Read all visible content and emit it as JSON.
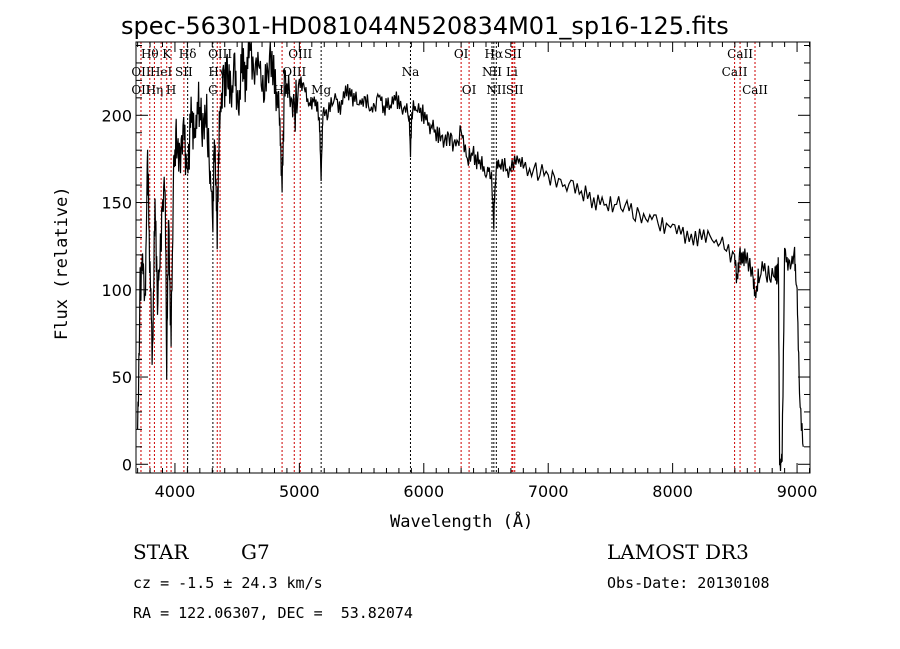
{
  "chart_data": {
    "type": "line",
    "title": "spec-56301-HD081044N520834M01_sp16-125.fits",
    "xlabel": "Wavelength (Å)",
    "ylabel": "Flux (relative)",
    "xlim": [
      3687,
      9104
    ],
    "ylim": [
      -5,
      242
    ],
    "xticks": [
      4000,
      5000,
      6000,
      7000,
      8000,
      9000
    ],
    "yticks": [
      0,
      50,
      100,
      150,
      200
    ],
    "grid": false,
    "series": [
      {
        "name": "spectrum",
        "x": [
          3700,
          3720,
          3740,
          3760,
          3780,
          3800,
          3820,
          3840,
          3860,
          3880,
          3900,
          3920,
          3934,
          3950,
          3969,
          3990,
          4010,
          4040,
          4070,
          4100,
          4130,
          4160,
          4190,
          4220,
          4250,
          4280,
          4305,
          4320,
          4340,
          4360,
          4390,
          4420,
          4450,
          4480,
          4510,
          4540,
          4570,
          4600,
          4640,
          4680,
          4720,
          4760,
          4800,
          4840,
          4861,
          4880,
          4920,
          4960,
          5000,
          5040,
          5080,
          5120,
          5160,
          5175,
          5190,
          5230,
          5280,
          5330,
          5380,
          5430,
          5480,
          5530,
          5580,
          5630,
          5680,
          5730,
          5780,
          5830,
          5880,
          5893,
          5910,
          5950,
          6000,
          6050,
          6100,
          6150,
          6200,
          6250,
          6300,
          6350,
          6400,
          6450,
          6500,
          6540,
          6563,
          6580,
          6620,
          6680,
          6740,
          6800,
          6900,
          7000,
          7100,
          7200,
          7300,
          7400,
          7500,
          7600,
          7700,
          7800,
          7900,
          8000,
          8100,
          8200,
          8300,
          8400,
          8498,
          8520,
          8542,
          8580,
          8640,
          8662,
          8700,
          8760,
          8820,
          8840,
          8850,
          8860,
          8880,
          8900,
          8940,
          8980,
          9000,
          9020,
          9050
        ],
        "y": [
          20,
          100,
          120,
          90,
          175,
          110,
          60,
          150,
          95,
          120,
          150,
          160,
          60,
          140,
          70,
          170,
          185,
          175,
          190,
          165,
          200,
          185,
          210,
          190,
          205,
          170,
          140,
          190,
          135,
          200,
          215,
          225,
          210,
          230,
          200,
          235,
          215,
          240,
          225,
          230,
          215,
          235,
          220,
          205,
          160,
          215,
          210,
          200,
          220,
          215,
          205,
          210,
          200,
          165,
          205,
          200,
          212,
          205,
          215,
          210,
          205,
          210,
          200,
          212,
          205,
          205,
          210,
          205,
          200,
          180,
          205,
          205,
          200,
          195,
          190,
          185,
          188,
          182,
          190,
          175,
          178,
          172,
          170,
          168,
          140,
          170,
          172,
          168,
          175,
          170,
          168,
          165,
          160,
          158,
          155,
          150,
          148,
          150,
          145,
          142,
          138,
          138,
          132,
          130,
          128,
          125,
          118,
          105,
          120,
          118,
          112,
          95,
          112,
          110,
          110,
          108,
          115,
          0,
          5,
          118,
          115,
          120,
          95,
          40,
          10
        ]
      }
    ],
    "line_markers": [
      {
        "label": "OII",
        "wave": 3727,
        "row": 2,
        "color": "#cc0000"
      },
      {
        "label": "OII",
        "wave": 3727,
        "row": 3,
        "color": "#cc0000"
      },
      {
        "label": "Hθ",
        "wave": 3798,
        "row": 1,
        "color": "#cc0000"
      },
      {
        "label": "Hη",
        "wave": 3835,
        "row": 3,
        "color": "#cc0000"
      },
      {
        "label": "HeI",
        "wave": 3889,
        "row": 2,
        "color": "#cc0000"
      },
      {
        "label": "K",
        "wave": 3934,
        "row": 1,
        "color": "#cc0000"
      },
      {
        "label": "H",
        "wave": 3969,
        "row": 3,
        "color": "#cc0000"
      },
      {
        "label": "SII",
        "wave": 4072,
        "row": 2,
        "color": "#cc0000"
      },
      {
        "label": "Hδ",
        "wave": 4102,
        "row": 1,
        "color": "#000000"
      },
      {
        "label": "G",
        "wave": 4305,
        "row": 3,
        "color": "#000000"
      },
      {
        "label": "Hγ",
        "wave": 4340,
        "row": 2,
        "color": "#cc0000"
      },
      {
        "label": "OIII",
        "wave": 4363,
        "row": 1,
        "color": "#cc0000"
      },
      {
        "label": "Hβ",
        "wave": 4861,
        "row": 3,
        "color": "#cc0000"
      },
      {
        "label": "OIII",
        "wave": 4959,
        "row": 2,
        "color": "#cc0000"
      },
      {
        "label": "OIII",
        "wave": 5007,
        "row": 1,
        "color": "#cc0000"
      },
      {
        "label": "Mg",
        "wave": 5175,
        "row": 3,
        "color": "#000000"
      },
      {
        "label": "Na",
        "wave": 5893,
        "row": 2,
        "color": "#000000"
      },
      {
        "label": "OI",
        "wave": 6300,
        "row": 1,
        "color": "#cc0000"
      },
      {
        "label": "OI",
        "wave": 6364,
        "row": 3,
        "color": "#cc0000"
      },
      {
        "label": "NII",
        "wave": 6548,
        "row": 2,
        "color": "#000000"
      },
      {
        "label": "Hα",
        "wave": 6563,
        "row": 1,
        "color": "#000000"
      },
      {
        "label": "NII",
        "wave": 6583,
        "row": 3,
        "color": "#000000"
      },
      {
        "label": "Li",
        "wave": 6708,
        "row": 2,
        "color": "#cc0000"
      },
      {
        "label": "SII",
        "wave": 6716,
        "row": 1,
        "color": "#cc0000"
      },
      {
        "label": "SII",
        "wave": 6731,
        "row": 3,
        "color": "#cc0000"
      },
      {
        "label": "CaII",
        "wave": 8498,
        "row": 2,
        "color": "#cc0000"
      },
      {
        "label": "CaII",
        "wave": 8542,
        "row": 1,
        "color": "#cc0000"
      },
      {
        "label": "CaII",
        "wave": 8662,
        "row": 3,
        "color": "#cc0000"
      }
    ]
  },
  "info": {
    "object_class": "STAR",
    "subclass": "G7",
    "survey": "LAMOST DR3",
    "redshift": "cz = -1.5 ± 24.3 km/s",
    "obs_date": "Obs-Date: 20130108",
    "coords": "RA = 122.06307, DEC =  53.82074"
  }
}
